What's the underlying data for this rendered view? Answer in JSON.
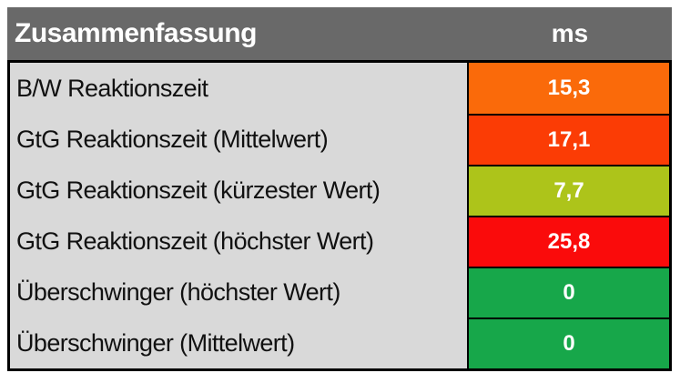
{
  "table": {
    "header": {
      "title": "Zusammenfassung",
      "unit_label": "ms"
    },
    "rows": [
      {
        "label": "B/W Reaktionszeit",
        "value": "15,3",
        "color": "#fa6a0a"
      },
      {
        "label": "GtG Reaktionszeit (Mittelwert)",
        "value": "17,1",
        "color": "#fb3c05"
      },
      {
        "label": "GtG Reaktionszeit (kürzester Wert)",
        "value": "7,7",
        "color": "#adc41a"
      },
      {
        "label": "GtG Reaktionszeit (höchster Wert)",
        "value": "25,8",
        "color": "#fa0b0b"
      },
      {
        "label": "Überschwinger (höchster Wert)",
        "value": "0",
        "color": "#17a74a"
      },
      {
        "label": "Überschwinger (Mittelwert)",
        "value": "0",
        "color": "#17a74a"
      }
    ],
    "colors": {
      "header_bg": "#696969",
      "label_bg": "#d9d9d9",
      "border": "#000000",
      "header_text": "#ffffff",
      "value_text": "#ffffff",
      "label_text": "#111111"
    }
  },
  "chart_data": {
    "type": "table",
    "title": "Zusammenfassung",
    "columns": [
      "Zusammenfassung",
      "ms"
    ],
    "rows": [
      [
        "B/W Reaktionszeit",
        15.3
      ],
      [
        "GtG Reaktionszeit (Mittelwert)",
        17.1
      ],
      [
        "GtG Reaktionszeit (kürzester Wert)",
        7.7
      ],
      [
        "GtG Reaktionszeit (höchster Wert)",
        25.8
      ],
      [
        "Überschwinger (höchster Wert)",
        0
      ],
      [
        "Überschwinger (Mittelwert)",
        0
      ]
    ],
    "cell_status_colors": [
      "#fa6a0a",
      "#fb3c05",
      "#adc41a",
      "#fa0b0b",
      "#17a74a",
      "#17a74a"
    ],
    "layout_hints": {
      "value_column_highlighted": true,
      "color_scale": "green (good / low) to red (bad / high)"
    }
  }
}
